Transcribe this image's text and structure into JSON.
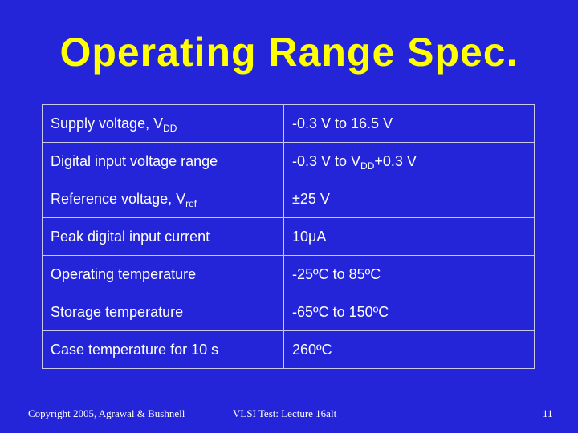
{
  "header": {
    "title": "Operating Range Spec."
  },
  "table": {
    "rows": [
      [
        [
          {
            "text": "Supply voltage, V"
          },
          {
            "text": "DD",
            "sub": true
          }
        ],
        [
          {
            "text": "-0.3 V to 16.5 V"
          }
        ]
      ],
      [
        [
          {
            "text": "Digital input voltage range"
          }
        ],
        [
          {
            "text": "-0.3 V to V"
          },
          {
            "text": "DD",
            "sub": true
          },
          {
            "text": "+0.3 V"
          }
        ]
      ],
      [
        [
          {
            "text": "Reference voltage, V"
          },
          {
            "text": "ref",
            "sub": true
          }
        ],
        [
          {
            "text": "±25 V"
          }
        ]
      ],
      [
        [
          {
            "text": "Peak digital input current"
          }
        ],
        [
          {
            "text": "10μA"
          }
        ]
      ],
      [
        [
          {
            "text": "Operating temperature"
          }
        ],
        [
          {
            "text": "-25ºC to 85ºC"
          }
        ]
      ],
      [
        [
          {
            "text": "Storage temperature"
          }
        ],
        [
          {
            "text": "-65ºC to 150ºC"
          }
        ]
      ],
      [
        [
          {
            "text": "Case temperature for 10 s"
          }
        ],
        [
          {
            "text": "260ºC"
          }
        ]
      ]
    ]
  },
  "footer": {
    "left": "Copyright 2005, Agrawal & Bushnell",
    "center": "VLSI Test: Lecture 16alt",
    "right": "11"
  }
}
